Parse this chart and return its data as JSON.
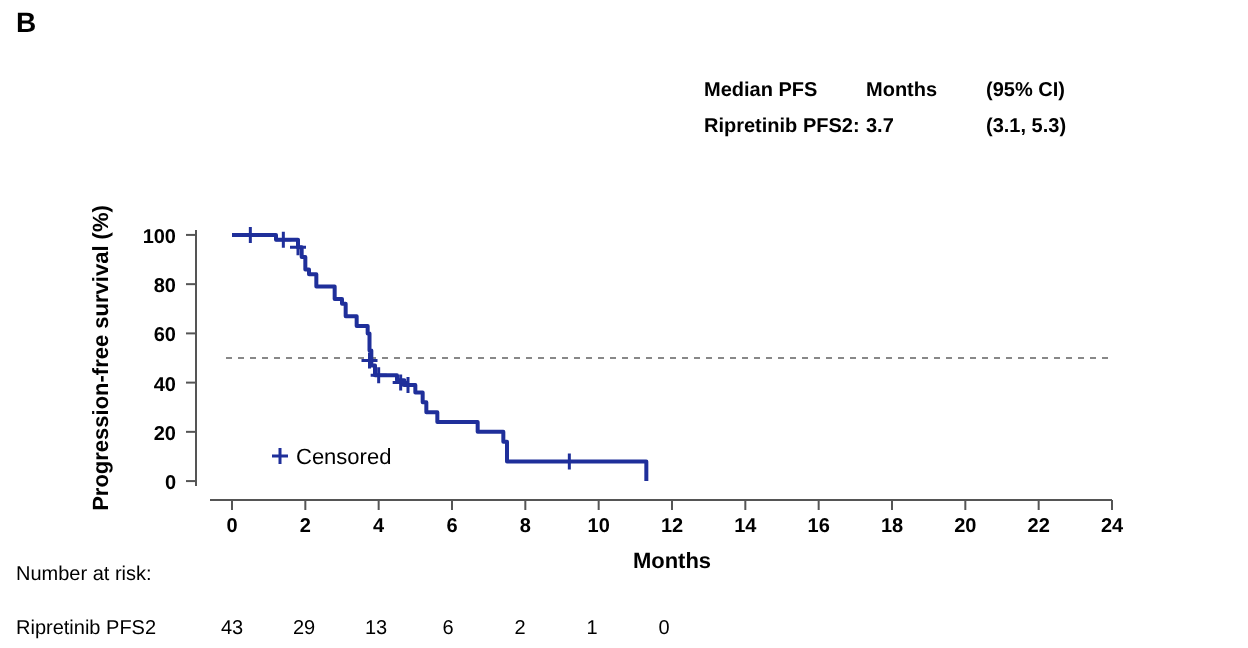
{
  "chart_data": {
    "type": "step",
    "title": "B",
    "xlabel": "Months",
    "ylabel": "Progression-free survival (%)",
    "xlim": [
      -0.6,
      24
    ],
    "ylim": [
      -2,
      102
    ],
    "xticks": [
      0,
      2,
      4,
      6,
      8,
      10,
      12,
      14,
      16,
      18,
      20,
      22,
      24
    ],
    "yticks": [
      0,
      20,
      40,
      60,
      80,
      100
    ],
    "series": [
      {
        "color": "#1f2f9a",
        "x": [
          0,
          1.2,
          1.8,
          1.9,
          2.0,
          2.1,
          2.3,
          2.8,
          3.0,
          3.1,
          3.4,
          3.7,
          3.75,
          3.8,
          3.9,
          4.5,
          4.7,
          5.0,
          5.2,
          5.3,
          5.6,
          6.7,
          7.4,
          7.5,
          11.3
        ],
        "values": [
          100,
          98,
          95,
          91,
          86,
          84,
          79,
          74,
          72,
          67,
          63,
          60,
          53,
          47,
          43,
          41,
          39,
          36,
          32,
          28,
          24,
          20,
          16,
          8,
          0
        ]
      },
      {
        "type": "scatter",
        "name": "Censored",
        "color": "#1f2f9a",
        "marker": "cross",
        "x": [
          0.5,
          1.4,
          1.8,
          3.75,
          4.0,
          4.6,
          4.8,
          9.2
        ],
        "values": [
          100,
          98,
          95,
          49,
          43,
          40,
          39,
          8
        ]
      }
    ],
    "ref_lines": [
      {
        "axis": "y",
        "value": 50,
        "label": null,
        "color": "#888888",
        "line_style": "dashed"
      }
    ],
    "legend": "bottom left",
    "grid": false,
    "annotations": [
      "Median PFS",
      "Months",
      "(95% CI)",
      "Ripretinib PFS2:",
      "3.7",
      "(3.1, 5.3)",
      "Number at risk:",
      "Ripretinib PFS2",
      "43",
      "29",
      "13",
      "6",
      "2",
      "1",
      "0"
    ]
  }
}
